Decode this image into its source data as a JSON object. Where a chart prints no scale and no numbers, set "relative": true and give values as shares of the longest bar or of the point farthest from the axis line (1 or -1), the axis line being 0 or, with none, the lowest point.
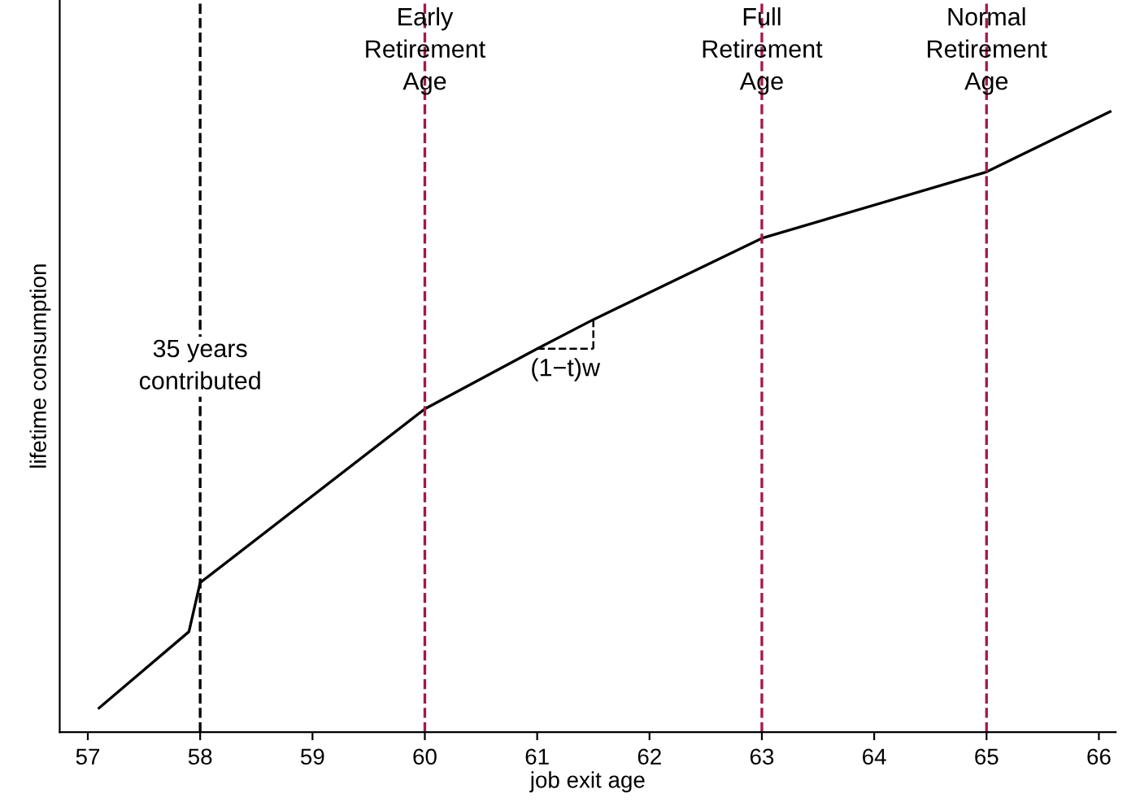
{
  "chart_data": {
    "type": "line",
    "xlabel": "job exit age",
    "ylabel": "lifetime consumption",
    "relative": true,
    "x": [
      57.1,
      57.9,
      58.0,
      60,
      61,
      61.5,
      63,
      65,
      66.1
    ],
    "series": [
      {
        "color": "#000000",
        "values": [
          0.039,
          0.162,
          0.241,
          0.521,
          0.618,
          0.665,
          0.796,
          0.903,
          1.0
        ]
      }
    ],
    "xlim": [
      56.75,
      66.15
    ],
    "xticks": [
      57,
      58,
      59,
      60,
      61,
      62,
      63,
      64,
      65,
      66
    ],
    "ref_lines": [
      {
        "axis": "x",
        "value": 58,
        "color": "#000000",
        "line_style": "dashed"
      },
      {
        "axis": "x",
        "value": 60,
        "label": "Early\nRetirement\nAge",
        "color": "#a6174a",
        "line_style": "dashed"
      },
      {
        "axis": "x",
        "value": 63,
        "label": "Full\nRetirement\nAge",
        "color": "#a6174a",
        "line_style": "dashed"
      },
      {
        "axis": "x",
        "value": 65,
        "label": "Normal\nRetirement\nAge",
        "color": "#a6174a",
        "line_style": "dashed"
      }
    ],
    "annotations": [
      {
        "text": "35 years\ncontributed",
        "x": 58,
        "y": 0.589
      },
      {
        "text": "(1−t)w",
        "x": 61,
        "y": 0.618
      }
    ],
    "grid": false,
    "legend": false,
    "marker": "none",
    "line_style": "solid"
  }
}
